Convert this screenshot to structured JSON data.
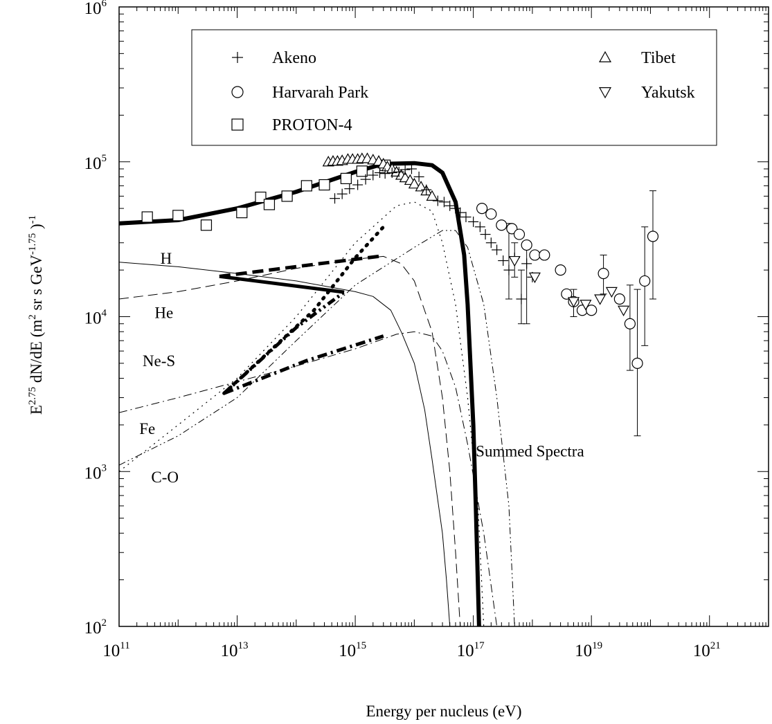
{
  "chart_data": {
    "type": "scatter",
    "title": "",
    "xlabel": "Energy per nucleus (eV)",
    "ylabel": {
      "base": "E",
      "exp1": "2.75",
      "mid": " dN/dE (m",
      "exp2": "2",
      "mid2": " sr s GeV",
      "exp3": "-1.75",
      "end": " )",
      "exp4": "-1"
    },
    "x_scale": "log",
    "y_scale": "log",
    "xlim": [
      100000000000.0,
      1e+22
    ],
    "ylim": [
      100,
      1000000
    ],
    "x_ticks": [
      {
        "base": "10",
        "exp": "11",
        "value": 100000000000.0
      },
      {
        "base": "10",
        "exp": "13",
        "value": 10000000000000.0
      },
      {
        "base": "10",
        "exp": "15",
        "value": 1000000000000000.0
      },
      {
        "base": "10",
        "exp": "17",
        "value": 1e+17
      },
      {
        "base": "10",
        "exp": "19",
        "value": 1e+19
      },
      {
        "base": "10",
        "exp": "21",
        "value": 1e+21
      }
    ],
    "y_ticks": [
      {
        "base": "10",
        "exp": "2",
        "value": 100
      },
      {
        "base": "10",
        "exp": "3",
        "value": 1000
      },
      {
        "base": "10",
        "exp": "4",
        "value": 10000
      },
      {
        "base": "10",
        "exp": "5",
        "value": 100000
      },
      {
        "base": "10",
        "exp": "6",
        "value": 1000000
      }
    ],
    "legend_placement": "top",
    "legend": [
      {
        "name": "Akeno",
        "marker": "plus"
      },
      {
        "name": "Harvarah Park",
        "marker": "circle"
      },
      {
        "name": "PROTON-4",
        "marker": "square"
      },
      {
        "name": "Tibet",
        "marker": "triangle-up"
      },
      {
        "name": "Yakutsk",
        "marker": "triangle-down"
      }
    ],
    "scatter_series": [
      {
        "name": "PROTON-4",
        "marker": "square",
        "points": [
          [
            300000000000.0,
            44000
          ],
          [
            1000000000000.0,
            45000
          ],
          [
            3000000000000.0,
            39000
          ],
          [
            12000000000000.0,
            47000
          ],
          [
            25000000000000.0,
            59000
          ],
          [
            35000000000000.0,
            53000
          ],
          [
            70000000000000.0,
            60000
          ],
          [
            150000000000000.0,
            70000
          ],
          [
            300000000000000.0,
            71000
          ],
          [
            700000000000000.0,
            78000
          ],
          [
            1300000000000000.0,
            87000
          ],
          [
            3200000000000000.0,
            95000
          ]
        ]
      },
      {
        "name": "Tibet",
        "marker": "triangle-up",
        "points": [
          [
            350000000000000.0,
            100000
          ],
          [
            420000000000000.0,
            101000
          ],
          [
            500000000000000.0,
            101000
          ],
          [
            600000000000000.0,
            102000
          ],
          [
            750000000000000.0,
            104000
          ],
          [
            900000000000000.0,
            104000
          ],
          [
            1100000000000000.0,
            104000
          ],
          [
            1300000000000000.0,
            105000
          ],
          [
            1600000000000000.0,
            105000
          ],
          [
            2000000000000000.0,
            103000
          ],
          [
            2500000000000000.0,
            101000
          ],
          [
            3000000000000000.0,
            97000
          ],
          [
            3500000000000000.0,
            93000
          ],
          [
            4200000000000000.0,
            90000
          ],
          [
            5000000000000000.0,
            86000
          ],
          [
            6000000000000000.0,
            82000
          ],
          [
            7000000000000000.0,
            79000
          ],
          [
            8500000000000000.0,
            76000
          ],
          [
            1e+16,
            72000
          ],
          [
            1.3e+16,
            69000
          ],
          [
            1.6e+16,
            65000
          ],
          [
            2e+16,
            60000
          ]
        ]
      },
      {
        "name": "Akeno",
        "marker": "plus",
        "points": [
          [
            450000000000000.0,
            58000
          ],
          [
            600000000000000.0,
            62000
          ],
          [
            800000000000000.0,
            67000
          ],
          [
            1100000000000000.0,
            71000
          ],
          [
            1500000000000000.0,
            77000
          ],
          [
            2000000000000000.0,
            82000
          ],
          [
            2600000000000000.0,
            85000
          ],
          [
            3200000000000000.0,
            84000
          ],
          [
            4200000000000000.0,
            85000
          ],
          [
            5500000000000000.0,
            86000
          ],
          [
            7000000000000000.0,
            89000
          ],
          [
            9000000000000000.0,
            90000
          ],
          [
            1.2e+16,
            80000
          ],
          [
            1.6e+16,
            66000
          ],
          [
            2.5e+16,
            56000
          ],
          [
            3.2e+16,
            55000
          ],
          [
            4e+16,
            52000
          ],
          [
            5e+16,
            50000
          ],
          [
            6e+16,
            47000
          ],
          [
            7.5e+16,
            44000
          ],
          [
            1e+17,
            41000
          ],
          [
            1.3e+17,
            38000
          ],
          [
            1.6e+17,
            34000
          ],
          [
            2e+17,
            30000
          ],
          [
            2.5e+17,
            27000
          ],
          [
            3.2e+17,
            23000
          ],
          [
            4e+17,
            20000
          ],
          [
            5e+17,
            24000
          ],
          [
            6.5e+17,
            13000
          ],
          [
            8e+17,
            22000
          ],
          [
            1e+18,
            18000
          ]
        ]
      },
      {
        "name": "Harvarah Park",
        "marker": "circle",
        "points": [
          [
            1.4e+17,
            50000
          ],
          [
            2e+17,
            46000
          ],
          [
            3e+17,
            39000
          ],
          [
            4.5e+17,
            37000
          ],
          [
            6e+17,
            34000
          ],
          [
            8e+17,
            29000
          ],
          [
            1.1e+18,
            25000
          ],
          [
            1.6e+18,
            25000
          ],
          [
            3e+18,
            20000
          ],
          [
            3.8e+18,
            14000
          ],
          [
            5e+18,
            12500
          ],
          [
            7e+18,
            11000
          ],
          [
            1e+19,
            11000
          ],
          [
            1.6e+19,
            19000
          ],
          [
            3e+19,
            13000
          ],
          [
            4.5e+19,
            9000
          ],
          [
            6e+19,
            5000
          ],
          [
            8e+19,
            17000
          ],
          [
            1.1e+20,
            33000
          ]
        ]
      },
      {
        "name": "Yakutsk",
        "marker": "triangle-down",
        "points": [
          [
            5e+17,
            23000
          ],
          [
            1.1e+18,
            18000
          ],
          [
            5e+18,
            12500
          ],
          [
            8e+18,
            12000
          ],
          [
            1.4e+19,
            13000
          ],
          [
            2.2e+19,
            14500
          ],
          [
            3.5e+19,
            11000
          ]
        ]
      }
    ],
    "error_bars": [
      {
        "x": 4e+17,
        "low": 13000,
        "high": 40000
      },
      {
        "x": 5e+17,
        "low": 18000,
        "high": 30000
      },
      {
        "x": 6.5e+17,
        "low": 9000,
        "high": 20000
      },
      {
        "x": 8e+17,
        "low": 9000,
        "high": 30000
      },
      {
        "x": 5e+18,
        "low": 10000,
        "high": 15000
      },
      {
        "x": 1.6e+19,
        "low": 14000,
        "high": 25000
      },
      {
        "x": 4.5e+19,
        "low": 4500,
        "high": 16000
      },
      {
        "x": 6e+19,
        "low": 1700,
        "high": 15000
      },
      {
        "x": 8e+19,
        "low": 6500,
        "high": 38000
      },
      {
        "x": 1.1e+20,
        "low": 13000,
        "high": 65000
      }
    ],
    "curves": [
      {
        "name": "H",
        "style": "thin",
        "points": [
          [
            100000000000.0,
            22500
          ],
          [
            1000000000000.0,
            21000
          ],
          [
            10000000000000.0,
            19000
          ],
          [
            100000000000000.0,
            17000
          ],
          [
            1000000000000000.0,
            14500
          ],
          [
            2000000000000000.0,
            13500
          ],
          [
            4000000000000000.0,
            11000
          ],
          [
            6000000000000000.0,
            8000
          ],
          [
            1e+16,
            5000
          ],
          [
            1.5e+16,
            2500
          ],
          [
            2e+16,
            1200
          ],
          [
            3e+16,
            400
          ],
          [
            3.5e+16,
            200
          ],
          [
            4e+16,
            100
          ]
        ]
      },
      {
        "name": "He",
        "style": "dash",
        "points": [
          [
            100000000000.0,
            13000
          ],
          [
            1000000000000.0,
            14500
          ],
          [
            10000000000000.0,
            17000
          ],
          [
            100000000000000.0,
            20500
          ],
          [
            1000000000000000.0,
            23500
          ],
          [
            3000000000000000.0,
            24500
          ],
          [
            6000000000000000.0,
            22000
          ],
          [
            1e+16,
            17000
          ],
          [
            2e+16,
            8000
          ],
          [
            3e+16,
            3000
          ],
          [
            4e+16,
            1000
          ],
          [
            5e+16,
            300
          ],
          [
            6e+16,
            100
          ]
        ]
      },
      {
        "name": "C-O",
        "style": "dot",
        "points": [
          [
            100000000000.0,
            1000
          ],
          [
            1000000000000.0,
            2000
          ],
          [
            10000000000000.0,
            4000
          ],
          [
            100000000000000.0,
            10000
          ],
          [
            1000000000000000.0,
            30000
          ],
          [
            5000000000000000.0,
            52000
          ],
          [
            1e+16,
            55000
          ],
          [
            2e+16,
            48000
          ],
          [
            3e+16,
            30000
          ],
          [
            5e+16,
            12000
          ],
          [
            8e+16,
            3000
          ],
          [
            1.2e+17,
            600
          ],
          [
            1.5e+17,
            100
          ]
        ]
      },
      {
        "name": "Ne-S",
        "style": "dash-dot",
        "points": [
          [
            100000000000.0,
            2400
          ],
          [
            1000000000000.0,
            3000
          ],
          [
            10000000000000.0,
            3800
          ],
          [
            100000000000000.0,
            4800
          ],
          [
            1000000000000000.0,
            6200
          ],
          [
            5000000000000000.0,
            7700
          ],
          [
            1e+16,
            8000
          ],
          [
            2e+16,
            7500
          ],
          [
            3e+16,
            6000
          ],
          [
            5e+16,
            3500
          ],
          [
            8e+16,
            1500
          ],
          [
            1.5e+17,
            400
          ],
          [
            2.5e+17,
            100
          ]
        ]
      },
      {
        "name": "Fe",
        "style": "dash-dot-dot",
        "points": [
          [
            100000000000.0,
            1100
          ],
          [
            1000000000000.0,
            1700
          ],
          [
            10000000000000.0,
            3000
          ],
          [
            100000000000000.0,
            7000
          ],
          [
            1000000000000000.0,
            16000
          ],
          [
            1e+16,
            28000
          ],
          [
            3e+16,
            36000
          ],
          [
            5e+16,
            36000
          ],
          [
            8e+16,
            28000
          ],
          [
            1.5e+17,
            12000
          ],
          [
            2.5e+17,
            3000
          ],
          [
            4e+17,
            600
          ],
          [
            5e+17,
            100
          ]
        ]
      },
      {
        "name": "Summed Spectra",
        "style": "thick",
        "points": [
          [
            100000000000.0,
            40000
          ],
          [
            1000000000000.0,
            42000
          ],
          [
            10000000000000.0,
            50000
          ],
          [
            100000000000000.0,
            64000
          ],
          [
            1000000000000000.0,
            86000
          ],
          [
            3000000000000000.0,
            97000
          ],
          [
            1e+16,
            98000
          ],
          [
            2e+16,
            95000
          ],
          [
            3e+16,
            85000
          ],
          [
            5e+16,
            55000
          ],
          [
            7e+16,
            25000
          ],
          [
            8e+16,
            12000
          ],
          [
            1e+17,
            2000
          ],
          [
            1.1e+17,
            600
          ],
          [
            1.25e+17,
            100
          ]
        ]
      }
    ],
    "highlight_segments": [
      {
        "style": "thick-solid",
        "points": [
          [
            5000000000000.0,
            18200
          ],
          [
            650000000000000.0,
            14400
          ]
        ]
      },
      {
        "style": "thick-dash",
        "points": [
          [
            5000000000000.0,
            18200
          ],
          [
            250000000000000.0,
            22000
          ],
          [
            2500000000000000.0,
            24500
          ]
        ]
      },
      {
        "style": "thick-dot",
        "points": [
          [
            6000000000000.0,
            3200
          ],
          [
            200000000000000.0,
            11000
          ],
          [
            1000000000000000.0,
            24000
          ],
          [
            3000000000000000.0,
            38000
          ]
        ]
      },
      {
        "style": "thick-dash-dot",
        "points": [
          [
            6000000000000.0,
            3200
          ],
          [
            150000000000000.0,
            5200
          ],
          [
            3000000000000000.0,
            7500
          ]
        ]
      },
      {
        "style": "thick-dash-dot-dot",
        "points": [
          [
            6000000000000.0,
            3200
          ],
          [
            100000000000000.0,
            8500
          ],
          [
            650000000000000.0,
            14400
          ]
        ]
      }
    ],
    "curve_labels": [
      {
        "text": "H",
        "x": 500000000000.0,
        "y": 22000
      },
      {
        "text": "He",
        "x": 400000000000.0,
        "y": 9800
      },
      {
        "text": "Ne-S",
        "x": 250000000000.0,
        "y": 4800
      },
      {
        "text": "Fe",
        "x": 220000000000.0,
        "y": 1750
      },
      {
        "text": "C-O",
        "x": 350000000000.0,
        "y": 850
      },
      {
        "text": "Summed Spectra",
        "x": 1.1e+17,
        "y": 1250
      }
    ]
  }
}
